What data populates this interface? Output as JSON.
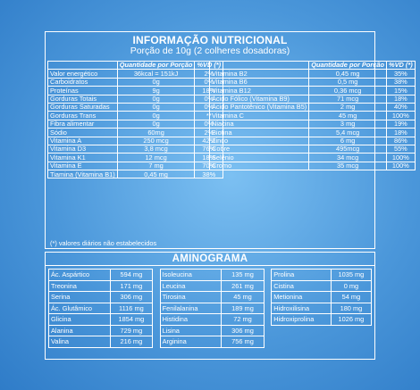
{
  "nutrition": {
    "title": "INFORMAÇÃO NUTRICIONAL",
    "subtitle": "Porção de 10g (2 colheres dosadoras)",
    "left_header": {
      "label": "Quantidade por Porção",
      "vd": "%VD (*)"
    },
    "right_header": {
      "label": "Quantidade por Porção",
      "vd": "%VD (*)"
    },
    "left_rows": [
      {
        "name": "Valor energético",
        "qty": "36kcal = 151kJ",
        "vd": "2%"
      },
      {
        "name": "Carboidratos",
        "qty": "0g",
        "vd": "0%"
      },
      {
        "name": "Proteínas",
        "qty": "9g",
        "vd": "18%"
      },
      {
        "name": "Gorduras Totais",
        "qty": "0g",
        "vd": "0%"
      },
      {
        "name": "Gorduras Saturadas",
        "qty": "0g",
        "vd": "0%"
      },
      {
        "name": "Gorduras Trans",
        "qty": "0g",
        "vd": "**"
      },
      {
        "name": "Fibra alimentar",
        "qty": "0g",
        "vd": "0%"
      },
      {
        "name": "Sódio",
        "qty": "60mg",
        "vd": "2%"
      },
      {
        "name": "Vitamina A",
        "qty": "250 mcg",
        "vd": "42%"
      },
      {
        "name": "Vitamina D3",
        "qty": "3,8 mcg",
        "vd": "76%"
      },
      {
        "name": "Vitamina K1",
        "qty": "12 mcg",
        "vd": "18%"
      },
      {
        "name": "Vitamina E",
        "qty": "7 mg",
        "vd": "70%"
      },
      {
        "name": "Tiamina (Vitamina B1)",
        "qty": "0,45 mg",
        "vd": "38%"
      }
    ],
    "right_rows": [
      {
        "name": "Vitamina B2",
        "qty": "0,45 mg",
        "vd": "35%"
      },
      {
        "name": "Vitamina B6",
        "qty": "0,5 mg",
        "vd": "38%"
      },
      {
        "name": "Vitamina B12",
        "qty": "0,36 mcg",
        "vd": "15%"
      },
      {
        "name": "Ácido Fólico (Vitamina B9)",
        "qty": "71 mcg",
        "vd": "18%"
      },
      {
        "name": "Ácido Pantotênico (Vitamina B5)",
        "qty": "2 mg",
        "vd": "40%"
      },
      {
        "name": "Vitamina C",
        "qty": "45 mg",
        "vd": "100%"
      },
      {
        "name": "Niacina",
        "qty": "3 mg",
        "vd": "19%"
      },
      {
        "name": "Biotina",
        "qty": "5,4 mcg",
        "vd": "18%"
      },
      {
        "name": "Zinco",
        "qty": "6 mg",
        "vd": "86%"
      },
      {
        "name": "Cobre",
        "qty": "495mcg",
        "vd": "55%"
      },
      {
        "name": "Selênio",
        "qty": "34 mcg",
        "vd": "100%"
      },
      {
        "name": "Cromo",
        "qty": "35 mcg",
        "vd": "100%"
      }
    ],
    "footnote": "(*) valores diários não estabelecidos"
  },
  "aminogram": {
    "title": "AMINOGRAMA",
    "rows": [
      [
        {
          "name": "Ác. Aspártico",
          "qty": "594 mg"
        },
        {
          "name": "Isoleucina",
          "qty": "135 mg"
        },
        {
          "name": "Prolina",
          "qty": "1035 mg"
        }
      ],
      [
        {
          "name": "Treonina",
          "qty": "171 mg"
        },
        {
          "name": "Leucina",
          "qty": "261 mg"
        },
        {
          "name": "Cistina",
          "qty": "0 mg"
        }
      ],
      [
        {
          "name": "Serina",
          "qty": "306 mg"
        },
        {
          "name": "Tirosina",
          "qty": "45 mg"
        },
        {
          "name": "Metionina",
          "qty": "54 mg"
        }
      ],
      [
        {
          "name": "Ác. Glutâmico",
          "qty": "1116 mg"
        },
        {
          "name": "Fenilalanina",
          "qty": "189 mg"
        },
        {
          "name": "Hidroxilisina",
          "qty": "180 mg"
        }
      ],
      [
        {
          "name": "Glicina",
          "qty": "1854 mg"
        },
        {
          "name": "Histidina",
          "qty": "72 mg"
        },
        {
          "name": "Hidroxiprolina",
          "qty": "1026 mg"
        }
      ],
      [
        {
          "name": "Alanina",
          "qty": "729 mg"
        },
        {
          "name": "Lisina",
          "qty": "306 mg"
        },
        {
          "name": "",
          "qty": ""
        }
      ],
      [
        {
          "name": "Valina",
          "qty": "216 mg"
        },
        {
          "name": "Arginina",
          "qty": "756 mg"
        },
        {
          "name": "",
          "qty": ""
        }
      ]
    ]
  }
}
